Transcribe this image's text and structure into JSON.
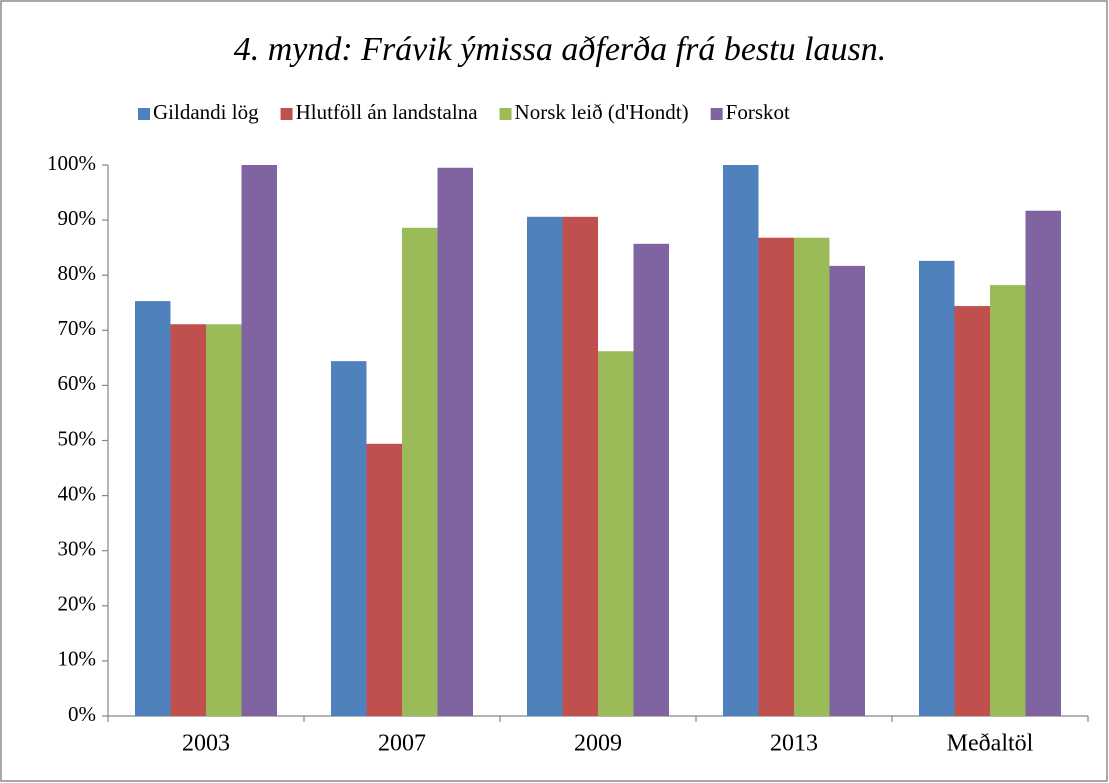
{
  "chart_data": {
    "type": "bar",
    "title": "4. mynd: Frávik ýmissa aðferða frá bestu lausn.",
    "categories": [
      "2003",
      "2007",
      "2009",
      "2013",
      "Meðaltöl"
    ],
    "series": [
      {
        "name": "Gildandi lög",
        "color": "#4f81bd",
        "values": [
          75.3,
          64.4,
          90.6,
          100,
          82.6
        ]
      },
      {
        "name": "Hlutföll án landstalna",
        "color": "#c0504d",
        "values": [
          71.1,
          49.4,
          90.6,
          86.8,
          74.4
        ]
      },
      {
        "name": "Norsk leið (d'Hondt)",
        "color": "#9bbb59",
        "values": [
          71.1,
          88.6,
          66.2,
          86.8,
          78.2
        ]
      },
      {
        "name": "Forskot",
        "color": "#8064a2",
        "values": [
          100,
          99.5,
          85.7,
          81.7,
          91.7
        ]
      }
    ],
    "ylim": [
      0,
      100
    ],
    "yticks": [
      {
        "value": 0,
        "label": "0%"
      },
      {
        "value": 10,
        "label": "10%"
      },
      {
        "value": 20,
        "label": "20%"
      },
      {
        "value": 30,
        "label": "30%"
      },
      {
        "value": 40,
        "label": "40%"
      },
      {
        "value": 50,
        "label": "50%"
      },
      {
        "value": 60,
        "label": "60%"
      },
      {
        "value": 70,
        "label": "70%"
      },
      {
        "value": 80,
        "label": "80%"
      },
      {
        "value": 90,
        "label": "90%"
      },
      {
        "value": 100,
        "label": "100%"
      }
    ],
    "legend": "top",
    "grid": false
  }
}
